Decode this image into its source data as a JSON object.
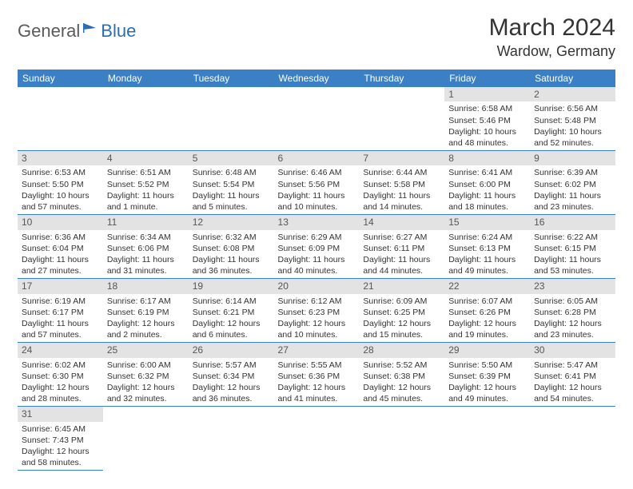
{
  "brand": {
    "part1": "General",
    "part2": "Blue"
  },
  "title": "March 2024",
  "location": "Wardow, Germany",
  "colors": {
    "header_bg": "#3b7fc4",
    "header_fg": "#ffffff",
    "daynum_bg": "#e3e3e3",
    "brand_blue": "#2a6db5",
    "brand_gray": "#5a5a5a",
    "border": "#3b7fc4"
  },
  "weekdays": [
    "Sunday",
    "Monday",
    "Tuesday",
    "Wednesday",
    "Thursday",
    "Friday",
    "Saturday"
  ],
  "weeks": [
    [
      {
        "n": "",
        "empty": true
      },
      {
        "n": "",
        "empty": true
      },
      {
        "n": "",
        "empty": true
      },
      {
        "n": "",
        "empty": true
      },
      {
        "n": "",
        "empty": true
      },
      {
        "n": "1",
        "sr": "Sunrise: 6:58 AM",
        "ss": "Sunset: 5:46 PM",
        "dl": "Daylight: 10 hours and 48 minutes."
      },
      {
        "n": "2",
        "sr": "Sunrise: 6:56 AM",
        "ss": "Sunset: 5:48 PM",
        "dl": "Daylight: 10 hours and 52 minutes."
      }
    ],
    [
      {
        "n": "3",
        "sr": "Sunrise: 6:53 AM",
        "ss": "Sunset: 5:50 PM",
        "dl": "Daylight: 10 hours and 57 minutes."
      },
      {
        "n": "4",
        "sr": "Sunrise: 6:51 AM",
        "ss": "Sunset: 5:52 PM",
        "dl": "Daylight: 11 hours and 1 minute."
      },
      {
        "n": "5",
        "sr": "Sunrise: 6:48 AM",
        "ss": "Sunset: 5:54 PM",
        "dl": "Daylight: 11 hours and 5 minutes."
      },
      {
        "n": "6",
        "sr": "Sunrise: 6:46 AM",
        "ss": "Sunset: 5:56 PM",
        "dl": "Daylight: 11 hours and 10 minutes."
      },
      {
        "n": "7",
        "sr": "Sunrise: 6:44 AM",
        "ss": "Sunset: 5:58 PM",
        "dl": "Daylight: 11 hours and 14 minutes."
      },
      {
        "n": "8",
        "sr": "Sunrise: 6:41 AM",
        "ss": "Sunset: 6:00 PM",
        "dl": "Daylight: 11 hours and 18 minutes."
      },
      {
        "n": "9",
        "sr": "Sunrise: 6:39 AM",
        "ss": "Sunset: 6:02 PM",
        "dl": "Daylight: 11 hours and 23 minutes."
      }
    ],
    [
      {
        "n": "10",
        "sr": "Sunrise: 6:36 AM",
        "ss": "Sunset: 6:04 PM",
        "dl": "Daylight: 11 hours and 27 minutes."
      },
      {
        "n": "11",
        "sr": "Sunrise: 6:34 AM",
        "ss": "Sunset: 6:06 PM",
        "dl": "Daylight: 11 hours and 31 minutes."
      },
      {
        "n": "12",
        "sr": "Sunrise: 6:32 AM",
        "ss": "Sunset: 6:08 PM",
        "dl": "Daylight: 11 hours and 36 minutes."
      },
      {
        "n": "13",
        "sr": "Sunrise: 6:29 AM",
        "ss": "Sunset: 6:09 PM",
        "dl": "Daylight: 11 hours and 40 minutes."
      },
      {
        "n": "14",
        "sr": "Sunrise: 6:27 AM",
        "ss": "Sunset: 6:11 PM",
        "dl": "Daylight: 11 hours and 44 minutes."
      },
      {
        "n": "15",
        "sr": "Sunrise: 6:24 AM",
        "ss": "Sunset: 6:13 PM",
        "dl": "Daylight: 11 hours and 49 minutes."
      },
      {
        "n": "16",
        "sr": "Sunrise: 6:22 AM",
        "ss": "Sunset: 6:15 PM",
        "dl": "Daylight: 11 hours and 53 minutes."
      }
    ],
    [
      {
        "n": "17",
        "sr": "Sunrise: 6:19 AM",
        "ss": "Sunset: 6:17 PM",
        "dl": "Daylight: 11 hours and 57 minutes."
      },
      {
        "n": "18",
        "sr": "Sunrise: 6:17 AM",
        "ss": "Sunset: 6:19 PM",
        "dl": "Daylight: 12 hours and 2 minutes."
      },
      {
        "n": "19",
        "sr": "Sunrise: 6:14 AM",
        "ss": "Sunset: 6:21 PM",
        "dl": "Daylight: 12 hours and 6 minutes."
      },
      {
        "n": "20",
        "sr": "Sunrise: 6:12 AM",
        "ss": "Sunset: 6:23 PM",
        "dl": "Daylight: 12 hours and 10 minutes."
      },
      {
        "n": "21",
        "sr": "Sunrise: 6:09 AM",
        "ss": "Sunset: 6:25 PM",
        "dl": "Daylight: 12 hours and 15 minutes."
      },
      {
        "n": "22",
        "sr": "Sunrise: 6:07 AM",
        "ss": "Sunset: 6:26 PM",
        "dl": "Daylight: 12 hours and 19 minutes."
      },
      {
        "n": "23",
        "sr": "Sunrise: 6:05 AM",
        "ss": "Sunset: 6:28 PM",
        "dl": "Daylight: 12 hours and 23 minutes."
      }
    ],
    [
      {
        "n": "24",
        "sr": "Sunrise: 6:02 AM",
        "ss": "Sunset: 6:30 PM",
        "dl": "Daylight: 12 hours and 28 minutes."
      },
      {
        "n": "25",
        "sr": "Sunrise: 6:00 AM",
        "ss": "Sunset: 6:32 PM",
        "dl": "Daylight: 12 hours and 32 minutes."
      },
      {
        "n": "26",
        "sr": "Sunrise: 5:57 AM",
        "ss": "Sunset: 6:34 PM",
        "dl": "Daylight: 12 hours and 36 minutes."
      },
      {
        "n": "27",
        "sr": "Sunrise: 5:55 AM",
        "ss": "Sunset: 6:36 PM",
        "dl": "Daylight: 12 hours and 41 minutes."
      },
      {
        "n": "28",
        "sr": "Sunrise: 5:52 AM",
        "ss": "Sunset: 6:38 PM",
        "dl": "Daylight: 12 hours and 45 minutes."
      },
      {
        "n": "29",
        "sr": "Sunrise: 5:50 AM",
        "ss": "Sunset: 6:39 PM",
        "dl": "Daylight: 12 hours and 49 minutes."
      },
      {
        "n": "30",
        "sr": "Sunrise: 5:47 AM",
        "ss": "Sunset: 6:41 PM",
        "dl": "Daylight: 12 hours and 54 minutes."
      }
    ],
    [
      {
        "n": "31",
        "sr": "Sunrise: 6:45 AM",
        "ss": "Sunset: 7:43 PM",
        "dl": "Daylight: 12 hours and 58 minutes."
      },
      {
        "n": "",
        "empty": true,
        "trail": true
      },
      {
        "n": "",
        "empty": true,
        "trail": true
      },
      {
        "n": "",
        "empty": true,
        "trail": true
      },
      {
        "n": "",
        "empty": true,
        "trail": true
      },
      {
        "n": "",
        "empty": true,
        "trail": true
      },
      {
        "n": "",
        "empty": true,
        "trail": true
      }
    ]
  ]
}
